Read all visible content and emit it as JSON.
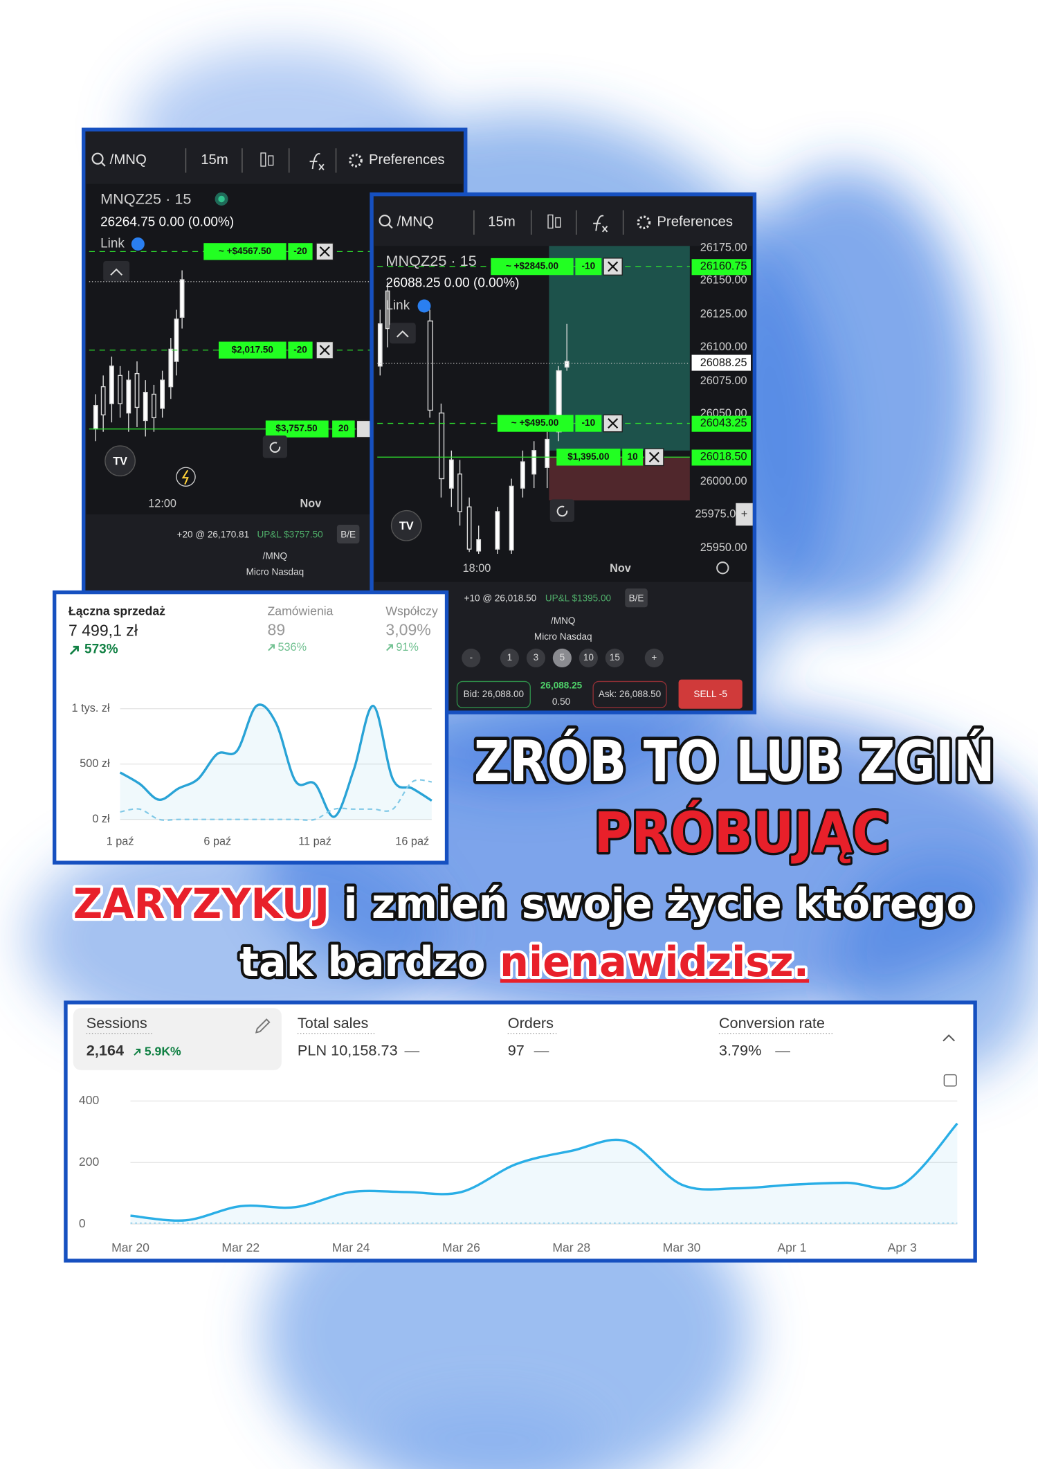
{
  "trading_panels": [
    {
      "symbol": "/MNQ",
      "interval": "15m",
      "preferences": "Preferences",
      "instrument": "MNQZ25 · 15",
      "quote": "26264.75 0.00 (0.00%)",
      "link": "Link",
      "orders": [
        {
          "pnl": "~ +$4567.50",
          "qty": "-20"
        },
        {
          "pnl": "$2,017.50",
          "qty": "-20"
        },
        {
          "pnl": "$3,757.50",
          "qty": "20"
        }
      ],
      "x_labels": [
        "12:00",
        "Nov"
      ],
      "position": "+20 @ 26,170.81",
      "upnl": "UP&L $3757.50",
      "be": "B/E",
      "footer_symbol": "/MNQ",
      "footer_name": "Micro Nasdaq"
    },
    {
      "symbol": "/MNQ",
      "interval": "15m",
      "preferences": "Preferences",
      "instrument": "MNQZ25 · 15",
      "quote": "26088.25 0.00 (0.00%)",
      "link": "Link",
      "orders": [
        {
          "pnl": "~ +$2845.00",
          "qty": "-10"
        },
        {
          "pnl": "~ +$495.00",
          "qty": "-10"
        },
        {
          "pnl": "$1,395.00",
          "qty": "10"
        }
      ],
      "price_axis": [
        "26175.00",
        "26150.00",
        "26125.00",
        "26100.00",
        "26075.00",
        "26050.00",
        "26000.00",
        "25975.0",
        "25950.00"
      ],
      "price_tags": [
        "26160.75",
        "26088.25",
        "26043.25",
        "26018.50"
      ],
      "x_labels": [
        "18:00",
        "Nov"
      ],
      "position": "+10 @ 26,018.50",
      "upnl": "UP&L $1395.00",
      "be": "B/E",
      "footer_symbol": "/MNQ",
      "footer_name": "Micro Nasdaq",
      "quantities": [
        "-",
        "1",
        "3",
        "5",
        "10",
        "15",
        "+"
      ],
      "bid": "Bid: 26,088.00",
      "last": "26,088.25",
      "spread": "0.50",
      "ask": "Ask: 26,088.50",
      "sell": "SELL -5"
    }
  ],
  "headline": {
    "line1": "ZRÓB TO LUB ZGIŃ",
    "line2": "PRÓBUJĄC",
    "line3a": "ZARYZYKUJ",
    "line3b": " i zmień swoje życie którego",
    "line4a": "tak bardzo ",
    "line4b": "nienawidzisz."
  },
  "chart_data": [
    {
      "type": "line",
      "kpis": [
        {
          "label": "Łączna sprzedaż",
          "value": "7 499,1 zł",
          "change": "573%"
        },
        {
          "label": "Zamówienia",
          "value": "89",
          "change": "536%"
        },
        {
          "label": "Współczy",
          "value": "3,09%",
          "change": "91%"
        }
      ],
      "categories": [
        "1 paź",
        null,
        null,
        null,
        null,
        "6 paź",
        null,
        null,
        null,
        null,
        "11 paź",
        null,
        null,
        null,
        null,
        "16 paź",
        null
      ],
      "series": [
        {
          "color": "#29a3d6",
          "area": true,
          "values": [
            424,
            322,
            178,
            280,
            365,
            593,
            619,
            1025,
            873,
            347,
            322,
            25,
            449,
            1025,
            365,
            280,
            170
          ]
        },
        {
          "color": "#7fc8e6",
          "line_style": "dashed",
          "values": [
            68,
            93,
            0,
            0,
            0,
            0,
            0,
            0,
            0,
            0,
            0,
            93,
            93,
            93,
            93,
            339,
            339
          ]
        }
      ],
      "ylim": [
        0,
        1000
      ],
      "yticks": [
        {
          "value": 0,
          "label": "0 zł"
        },
        {
          "value": 500,
          "label": "500 zł"
        },
        {
          "value": 1000,
          "label": "1 tys. zł"
        }
      ],
      "grid": true
    },
    {
      "type": "line",
      "kpis": [
        {
          "label": "Sessions",
          "value": "2,164",
          "change": "5.9K%"
        },
        {
          "label": "Total sales",
          "value": "PLN 10,158.73",
          "change": "—"
        },
        {
          "label": "Orders",
          "value": "97",
          "change": "—"
        },
        {
          "label": "Conversion rate",
          "value": "3.79%",
          "change": "—"
        }
      ],
      "categories": [
        "Mar 20",
        null,
        "Mar 22",
        null,
        "Mar 24",
        null,
        "Mar 26",
        null,
        "Mar 28",
        null,
        "Mar 30",
        null,
        "Apr 1",
        null,
        "Apr 3",
        null
      ],
      "series": [
        {
          "color": "#29aee6",
          "area": true,
          "values": [
            27,
            12,
            58,
            55,
            104,
            104,
            104,
            195,
            238,
            269,
            128,
            116,
            128,
            134,
            128,
            327
          ]
        },
        {
          "color": "#9fd5ee",
          "line_style": "dotted",
          "values": [
            3,
            3,
            3,
            3,
            3,
            3,
            3,
            3,
            3,
            3,
            3,
            3,
            3,
            3,
            3,
            3
          ]
        }
      ],
      "ylim": [
        0,
        400
      ],
      "yticks": [
        0,
        200,
        400
      ],
      "grid": true
    }
  ]
}
